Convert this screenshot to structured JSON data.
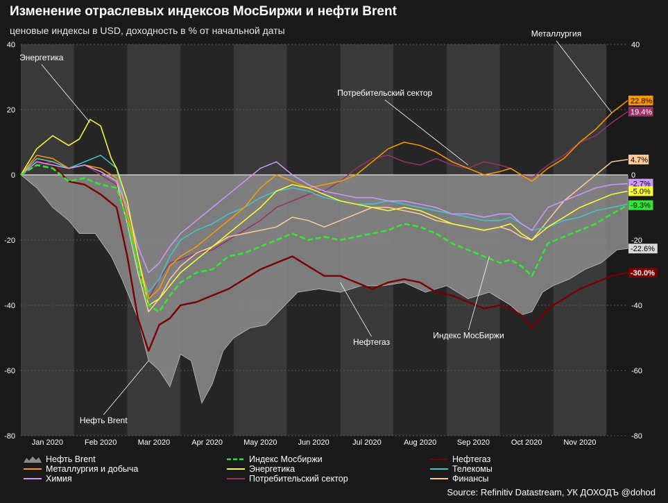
{
  "title": "Изменение отраслевых индексов МосБиржи и нефти Brent",
  "subtitle": "ценовые индексы в USD, доходность в % от начальной даты",
  "source": "Source: Refinitiv Datastream, УК ДОХОДЪ @dohod",
  "colors": {
    "background": "#1a1a1a",
    "band_light": "#3a3a3a",
    "band_dark": "#262626",
    "brent_fill": "#8c8c8c",
    "moex": "#33e633",
    "neftegaz": "#7a0000",
    "metal": "#ff9900",
    "energy": "#ffff33",
    "telecom": "#40c8c8",
    "chem": "#cc99ff",
    "consumer": "#993366",
    "finance": "#ffcc99"
  },
  "chart_data": {
    "type": "line",
    "ylim": [
      -80,
      40
    ],
    "yticks": [
      "40",
      "20",
      "0",
      "-20",
      "-40",
      "-60",
      "-80"
    ],
    "ytick_values": [
      40,
      20,
      0,
      -20,
      -40,
      -60,
      -80
    ],
    "months": [
      "Jan 2020",
      "Feb 2020",
      "Mar 2020",
      "Apr 2020",
      "May 2020",
      "Jun 2020",
      "Jul 2020",
      "Aug 2020",
      "Sep 2020",
      "Oct 2020",
      "Nov 2020"
    ],
    "x_domain_months": [
      0,
      11.4
    ],
    "series": [
      {
        "key": "brent",
        "name": "Нефть Brent",
        "kind": "area",
        "color": "#8c8c8c",
        "x": [
          0,
          0.3,
          0.6,
          0.9,
          1.1,
          1.4,
          1.7,
          1.9,
          2.2,
          2.4,
          2.6,
          2.8,
          3.0,
          3.2,
          3.4,
          3.6,
          3.8,
          4.0,
          4.3,
          4.6,
          4.9,
          5.2,
          5.6,
          6.0,
          6.4,
          6.8,
          7.2,
          7.6,
          8.0,
          8.4,
          8.8,
          9.0,
          9.2,
          9.4,
          9.6,
          9.8,
          10.0,
          10.3,
          10.6,
          10.9,
          11.2,
          11.4
        ],
        "y": [
          0,
          -4,
          -10,
          -14,
          -18,
          -18,
          -25,
          -32,
          -44,
          -57,
          -60,
          -65,
          -55,
          -57,
          -70,
          -64,
          -54,
          -50,
          -47,
          -46,
          -41,
          -36,
          -35,
          -36,
          -34,
          -34,
          -33,
          -36,
          -34,
          -38,
          -36,
          -38,
          -40,
          -43,
          -42,
          -36,
          -34,
          -32,
          -29,
          -27,
          -23,
          -22.6
        ]
      },
      {
        "key": "moex",
        "name": "Индекс Мосбиржи",
        "kind": "dashed",
        "color": "#33e633",
        "x": [
          0,
          0.3,
          0.6,
          0.9,
          1.2,
          1.5,
          1.8,
          2.0,
          2.2,
          2.4,
          2.6,
          2.8,
          3.0,
          3.3,
          3.6,
          3.9,
          4.2,
          4.5,
          4.8,
          5.1,
          5.4,
          5.7,
          6.0,
          6.3,
          6.6,
          6.9,
          7.2,
          7.5,
          7.8,
          8.1,
          8.4,
          8.7,
          9.0,
          9.2,
          9.4,
          9.6,
          9.9,
          10.2,
          10.5,
          10.8,
          11.1,
          11.4
        ],
        "y": [
          0,
          3,
          2,
          -2,
          -1,
          -3,
          -4,
          -14,
          -28,
          -40,
          -42,
          -37,
          -33,
          -30,
          -29,
          -25,
          -24,
          -22,
          -20,
          -18,
          -20,
          -19,
          -20,
          -19,
          -18,
          -17,
          -15,
          -16,
          -18,
          -21,
          -23,
          -25,
          -27,
          -26,
          -28,
          -31,
          -21,
          -19,
          -17,
          -15,
          -12,
          -9.3
        ]
      },
      {
        "key": "neftegaz",
        "name": "Нефтегаз",
        "kind": "line",
        "color": "#7a0000",
        "x": [
          0,
          0.3,
          0.6,
          0.9,
          1.2,
          1.5,
          1.8,
          2.0,
          2.2,
          2.4,
          2.6,
          2.8,
          3.0,
          3.3,
          3.6,
          3.9,
          4.2,
          4.5,
          4.8,
          5.1,
          5.4,
          5.7,
          6.0,
          6.3,
          6.6,
          6.9,
          7.2,
          7.5,
          7.8,
          8.1,
          8.4,
          8.7,
          9.0,
          9.2,
          9.4,
          9.6,
          9.9,
          10.2,
          10.5,
          10.8,
          11.1,
          11.4
        ],
        "y": [
          0,
          5,
          3,
          -2,
          -3,
          -6,
          -10,
          -25,
          -44,
          -54,
          -46,
          -44,
          -40,
          -39,
          -37,
          -35,
          -32,
          -29,
          -27,
          -25,
          -28,
          -31,
          -31,
          -33,
          -35,
          -33,
          -32,
          -33,
          -36,
          -37,
          -39,
          -41,
          -40,
          -41,
          -43,
          -47,
          -41,
          -38,
          -35,
          -33,
          -31,
          -30
        ]
      },
      {
        "key": "metal",
        "name": "Металлургия и добыча",
        "kind": "line",
        "color": "#ff9900",
        "x": [
          0,
          0.3,
          0.6,
          0.9,
          1.2,
          1.5,
          1.8,
          2.0,
          2.2,
          2.4,
          2.6,
          2.8,
          3.0,
          3.3,
          3.6,
          3.9,
          4.2,
          4.5,
          4.8,
          5.1,
          5.4,
          5.7,
          6.0,
          6.3,
          6.6,
          6.9,
          7.2,
          7.5,
          7.8,
          8.1,
          8.4,
          8.7,
          9.0,
          9.2,
          9.4,
          9.6,
          9.9,
          10.2,
          10.5,
          10.8,
          11.1,
          11.4
        ],
        "y": [
          0,
          6,
          5,
          2,
          3,
          2,
          -1,
          -12,
          -25,
          -38,
          -35,
          -28,
          -25,
          -22,
          -18,
          -14,
          -10,
          -4,
          0,
          -2,
          -4,
          -3,
          -2,
          0,
          4,
          8,
          10,
          9,
          7,
          4,
          2,
          0,
          1,
          2,
          0,
          -2,
          2,
          5,
          10,
          14,
          19,
          22.8
        ]
      },
      {
        "key": "energy",
        "name": "Энергетика",
        "kind": "line",
        "color": "#ffff33",
        "x": [
          0,
          0.3,
          0.6,
          0.9,
          1.1,
          1.3,
          1.5,
          1.7,
          1.8,
          2.0,
          2.2,
          2.4,
          2.6,
          2.8,
          3.0,
          3.3,
          3.6,
          3.9,
          4.2,
          4.5,
          4.8,
          5.1,
          5.4,
          5.7,
          6.0,
          6.3,
          6.6,
          6.9,
          7.2,
          7.5,
          7.8,
          8.1,
          8.4,
          8.7,
          9.0,
          9.2,
          9.4,
          9.6,
          9.9,
          10.2,
          10.5,
          10.8,
          11.1,
          11.4
        ],
        "y": [
          0,
          8,
          12,
          9,
          11,
          17,
          15,
          5,
          2,
          -8,
          -25,
          -40,
          -38,
          -34,
          -30,
          -26,
          -22,
          -18,
          -14,
          -10,
          -5,
          -3,
          -4,
          -6,
          -8,
          -9,
          -10,
          -11,
          -10,
          -11,
          -13,
          -15,
          -16,
          -17,
          -16,
          -15,
          -18,
          -20,
          -16,
          -13,
          -10,
          -8,
          -6,
          -5
        ]
      },
      {
        "key": "telecom",
        "name": "Телекомы",
        "kind": "line",
        "color": "#40c8c8",
        "x": [
          0,
          0.3,
          0.6,
          0.9,
          1.2,
          1.5,
          1.8,
          2.0,
          2.2,
          2.4,
          2.6,
          2.8,
          3.0,
          3.3,
          3.6,
          3.9,
          4.2,
          4.5,
          4.8,
          5.1,
          5.4,
          5.7,
          6.0,
          6.3,
          6.6,
          6.9,
          7.2,
          7.5,
          7.8,
          8.1,
          8.4,
          8.7,
          9.0,
          9.2,
          9.4,
          9.6,
          9.9,
          10.2,
          10.5,
          10.8,
          11.1,
          11.4
        ],
        "y": [
          0,
          5,
          4,
          2,
          4,
          6,
          2,
          -12,
          -28,
          -36,
          -32,
          -25,
          -20,
          -17,
          -15,
          -12,
          -10,
          -7,
          -5,
          -4,
          -5,
          -7,
          -8,
          -9,
          -9,
          -8,
          -9,
          -10,
          -11,
          -12,
          -13,
          -14,
          -14,
          -13,
          -15,
          -17,
          -16,
          -14,
          -13,
          -11,
          -10,
          -9
        ]
      },
      {
        "key": "chem",
        "name": "Химия",
        "kind": "line",
        "color": "#cc99ff",
        "x": [
          0,
          0.3,
          0.6,
          0.9,
          1.2,
          1.5,
          1.8,
          2.0,
          2.2,
          2.4,
          2.6,
          2.8,
          3.0,
          3.3,
          3.6,
          3.9,
          4.2,
          4.5,
          4.8,
          5.1,
          5.4,
          5.7,
          6.0,
          6.3,
          6.6,
          6.9,
          7.2,
          7.5,
          7.8,
          8.1,
          8.4,
          8.7,
          9.0,
          9.2,
          9.4,
          9.6,
          9.9,
          10.2,
          10.5,
          10.8,
          11.1,
          11.4
        ],
        "y": [
          0,
          4,
          3,
          2,
          3,
          1,
          -2,
          -10,
          -22,
          -30,
          -27,
          -22,
          -18,
          -14,
          -10,
          -6,
          -2,
          2,
          4,
          0,
          -3,
          -5,
          -6,
          -7,
          -7,
          -8,
          -8,
          -9,
          -10,
          -12,
          -12,
          -13,
          -12,
          -12,
          -15,
          -17,
          -10,
          -8,
          -6,
          -4,
          -3,
          -2.7
        ]
      },
      {
        "key": "consumer",
        "name": "Потребительский сектор",
        "kind": "line",
        "color": "#993366",
        "x": [
          0,
          0.3,
          0.6,
          0.9,
          1.2,
          1.5,
          1.8,
          2.0,
          2.2,
          2.4,
          2.6,
          2.8,
          3.0,
          3.3,
          3.6,
          3.9,
          4.2,
          4.5,
          4.8,
          5.1,
          5.4,
          5.7,
          6.0,
          6.3,
          6.6,
          6.9,
          7.2,
          7.5,
          7.8,
          8.1,
          8.4,
          8.7,
          9.0,
          9.2,
          9.4,
          9.6,
          9.9,
          10.2,
          10.5,
          10.8,
          11.1,
          11.4
        ],
        "y": [
          0,
          3,
          4,
          2,
          3,
          0,
          -3,
          -12,
          -28,
          -38,
          -32,
          -27,
          -26,
          -24,
          -23,
          -20,
          -17,
          -14,
          -10,
          -8,
          -6,
          -5,
          -2,
          2,
          5,
          6,
          4,
          3,
          5,
          3,
          2,
          4,
          3,
          2,
          0,
          -1,
          3,
          6,
          10,
          12,
          16,
          19.4
        ]
      },
      {
        "key": "finance",
        "name": "Финансы",
        "kind": "line",
        "color": "#ffcc99",
        "x": [
          0,
          0.3,
          0.6,
          0.9,
          1.2,
          1.5,
          1.8,
          2.0,
          2.2,
          2.4,
          2.6,
          2.8,
          3.0,
          3.3,
          3.6,
          3.9,
          4.2,
          4.5,
          4.8,
          5.1,
          5.4,
          5.7,
          6.0,
          6.3,
          6.6,
          6.9,
          7.2,
          7.5,
          7.8,
          8.1,
          8.4,
          8.7,
          9.0,
          9.2,
          9.4,
          9.6,
          9.9,
          10.2,
          10.5,
          10.8,
          11.1,
          11.4
        ],
        "y": [
          0,
          5,
          4,
          2,
          3,
          1,
          -2,
          -15,
          -30,
          -42,
          -38,
          -32,
          -28,
          -24,
          -22,
          -19,
          -18,
          -17,
          -16,
          -13,
          -14,
          -16,
          -14,
          -12,
          -10,
          -10,
          -11,
          -12,
          -14,
          -15,
          -16,
          -17,
          -16,
          -17,
          -19,
          -20,
          -14,
          -8,
          -4,
          0,
          4,
          4.7
        ]
      }
    ],
    "end_labels": [
      {
        "key": "metal",
        "text": "22.8%",
        "value": 22.8,
        "bg": "#ff9900",
        "fg": "#000000"
      },
      {
        "key": "consumer",
        "text": "19.4%",
        "value": 19.4,
        "bg": "#993366",
        "fg": "#ffffff"
      },
      {
        "key": "finance",
        "text": "4.7%",
        "value": 4.7,
        "bg": "#ffcc99",
        "fg": "#000000"
      },
      {
        "key": "chem",
        "text": "-2.7%",
        "value": -2.7,
        "bg": "#cc99ff",
        "fg": "#000000"
      },
      {
        "key": "energy",
        "text": "-5.0%",
        "value": -5.0,
        "bg": "#ffff33",
        "fg": "#000000"
      },
      {
        "key": "moex",
        "text": "-9.3%",
        "value": -9.3,
        "bg": "#33e633",
        "fg": "#000000"
      },
      {
        "key": "brent",
        "text": "-22.6%",
        "value": -22.6,
        "bg": "#d9d9d9",
        "fg": "#000000"
      },
      {
        "key": "neftegaz",
        "text": "-30.0%",
        "value": -30.0,
        "bg": "#7a0000",
        "fg": "#ffffff"
      }
    ],
    "annotations": [
      {
        "text": "Энергетика",
        "at_month": 1.3,
        "at_value": 16
      },
      {
        "text": "Металлургия",
        "at_month": 11.1,
        "at_value": 19
      },
      {
        "text": "Потребительский сектор",
        "at_month": 8.4,
        "at_value": 3
      },
      {
        "text": "Нефть Brent",
        "at_month": 2.4,
        "at_value": -57
      },
      {
        "text": "Нефтегаз",
        "at_month": 6.0,
        "at_value": -33
      },
      {
        "text": "Индекс МосБиржи",
        "at_month": 8.8,
        "at_value": -25
      }
    ]
  },
  "legend": [
    {
      "key": "brent",
      "label": "Нефть Brent",
      "style": "area",
      "color": "#8c8c8c"
    },
    {
      "key": "moex",
      "label": "Индекс Мосбиржи",
      "style": "dashed",
      "color": "#33e633"
    },
    {
      "key": "neftegaz",
      "label": "Нефтегаз",
      "style": "line",
      "color": "#7a0000"
    },
    {
      "key": "metal",
      "label": "Металлургия и добыча",
      "style": "line",
      "color": "#ff9900"
    },
    {
      "key": "energy",
      "label": "Энергетика",
      "style": "line",
      "color": "#ffff33"
    },
    {
      "key": "telecom",
      "label": "Телекомы",
      "style": "line",
      "color": "#40c8c8"
    },
    {
      "key": "chem",
      "label": "Химия",
      "style": "line",
      "color": "#cc99ff"
    },
    {
      "key": "consumer",
      "label": "Потребительский сектор",
      "style": "line",
      "color": "#993366"
    },
    {
      "key": "finance",
      "label": "Финансы",
      "style": "line",
      "color": "#ffcc99"
    }
  ]
}
